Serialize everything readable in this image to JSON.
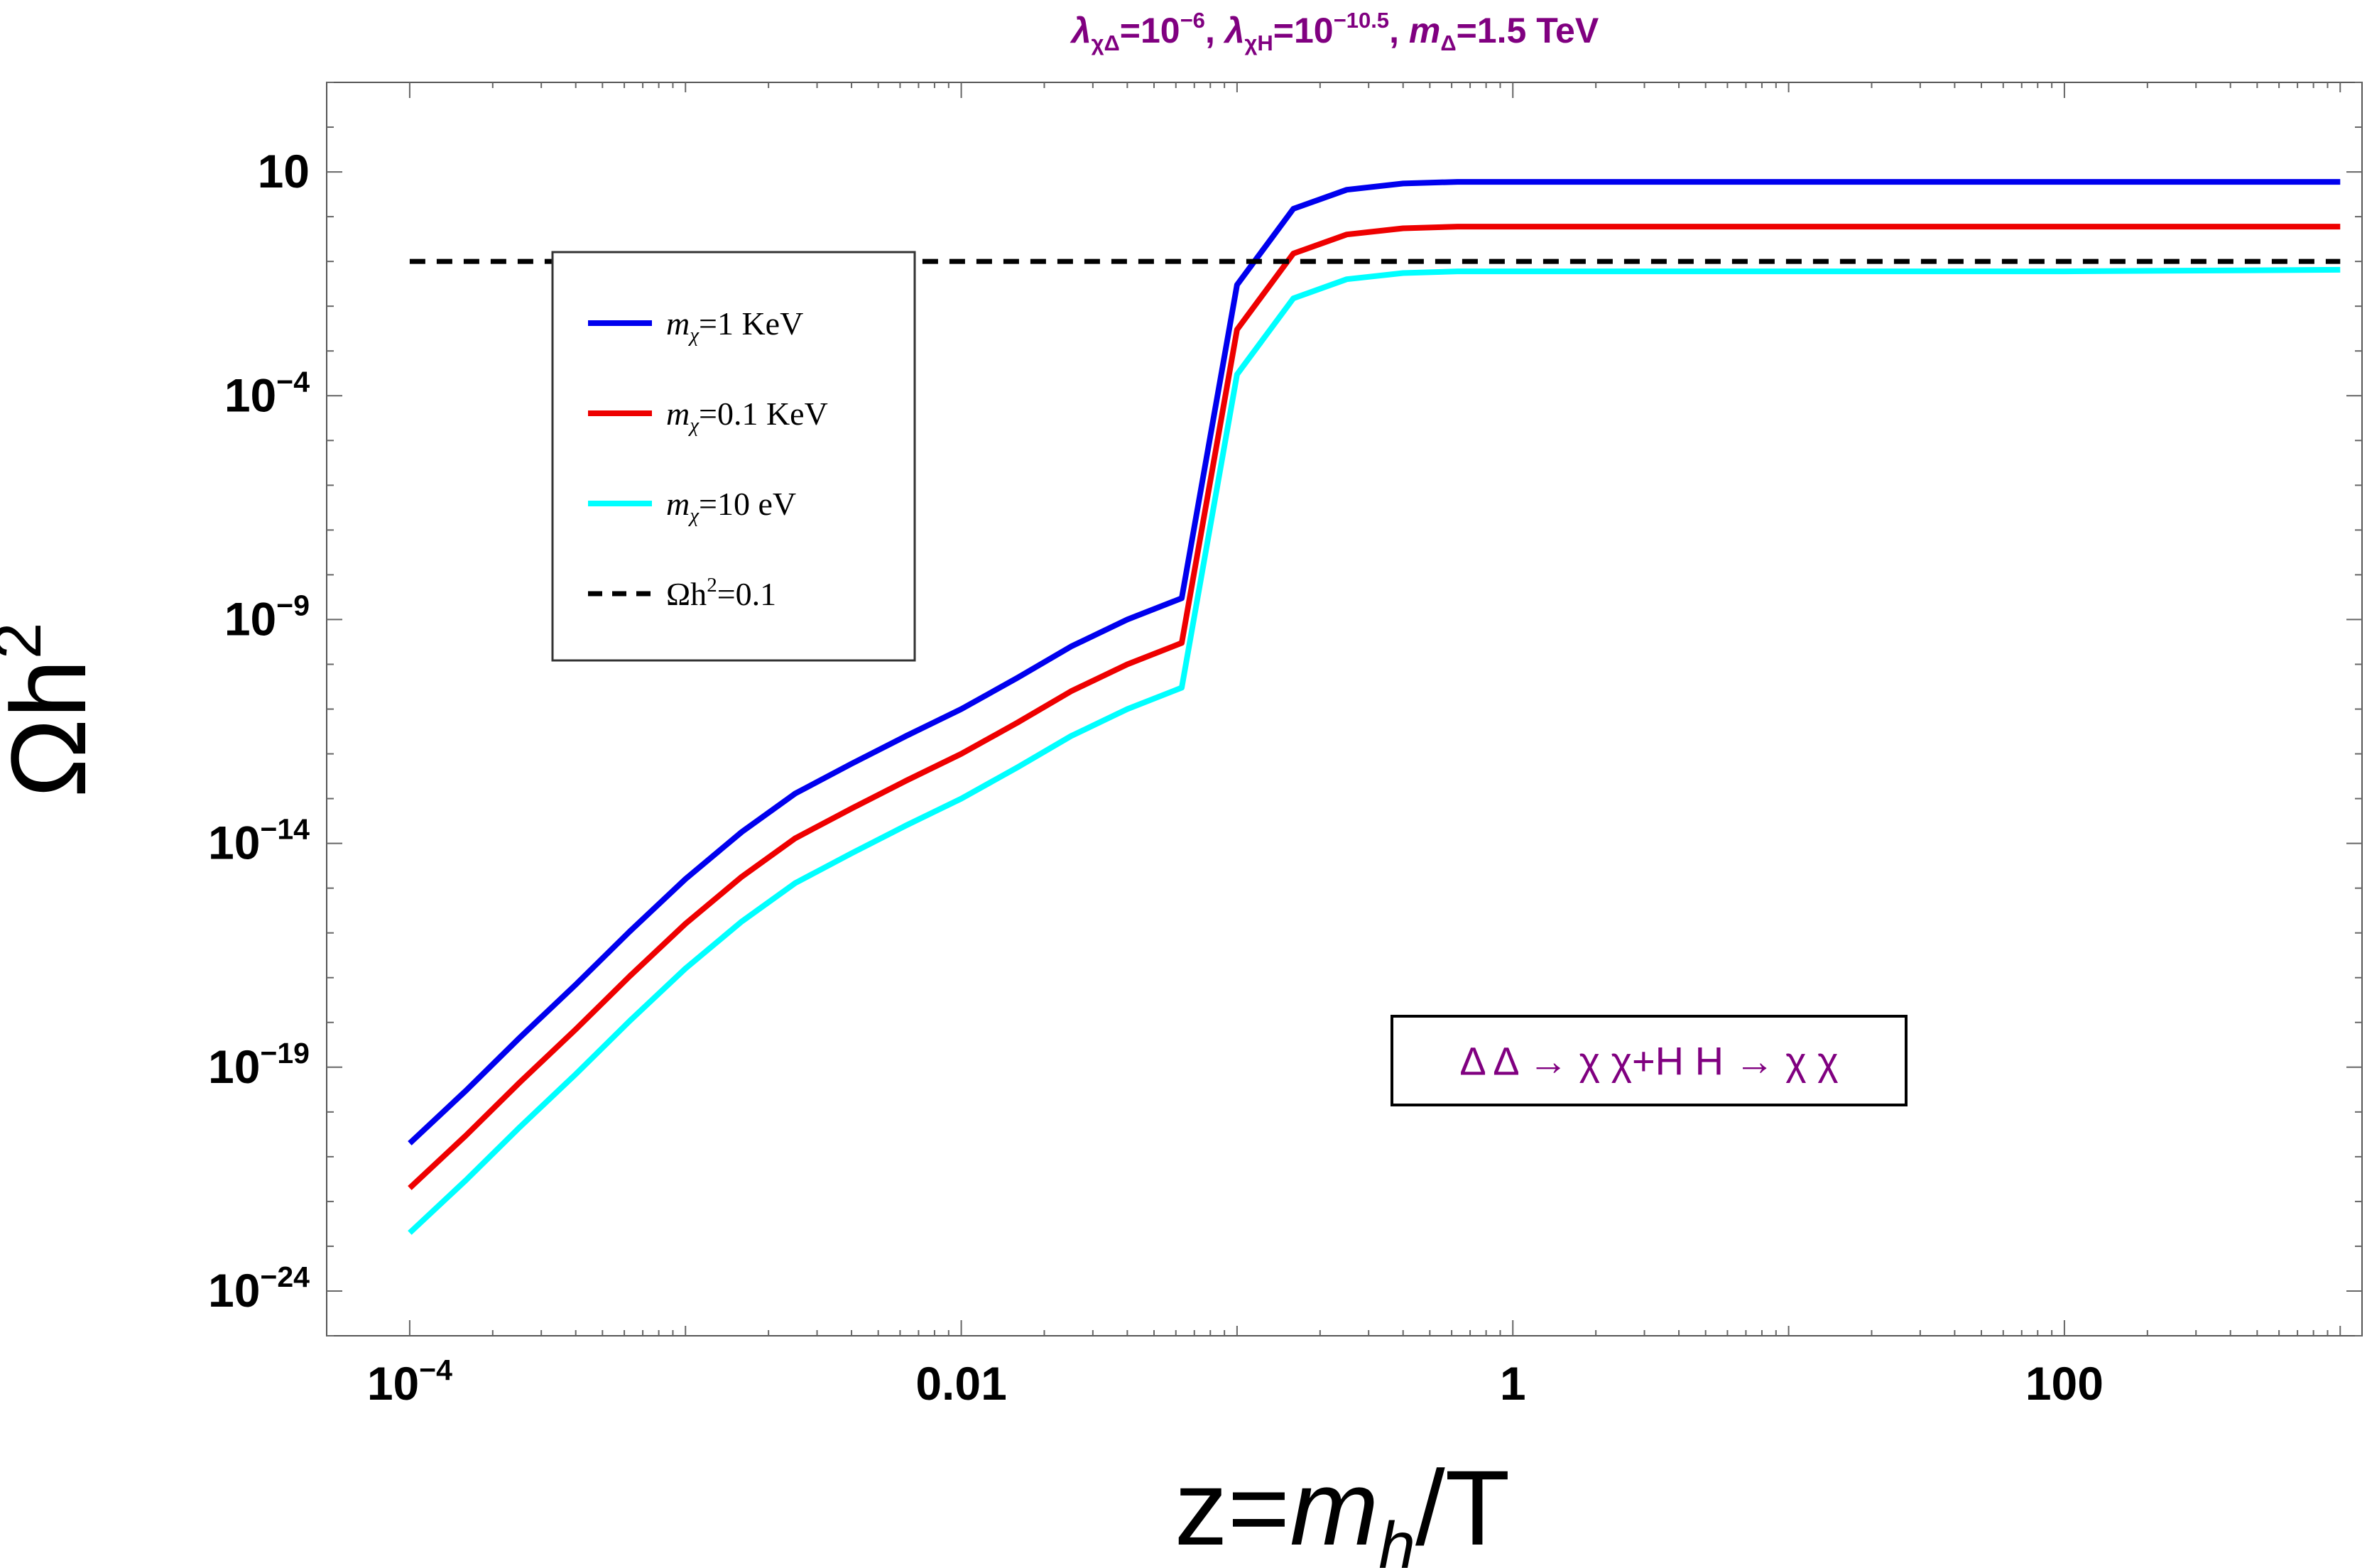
{
  "chart_data": {
    "type": "line",
    "title": {
      "parts": [
        {
          "t": "λ",
          "style": "italic"
        },
        {
          "t": "χΔ",
          "sub": true
        },
        {
          "t": "=10"
        },
        {
          "t": "−6",
          "sup": true
        },
        {
          "t": ", "
        },
        {
          "t": "λ",
          "style": "italic"
        },
        {
          "t": "χH",
          "sub": true
        },
        {
          "t": "=10"
        },
        {
          "t": "−10.5",
          "sup": true
        },
        {
          "t": ", "
        },
        {
          "t": "m",
          "style": "italic"
        },
        {
          "t": "Δ",
          "sub": true
        },
        {
          "t": "=1.5 TeV"
        }
      ]
    },
    "xlabel": {
      "parts": [
        {
          "t": "z="
        },
        {
          "t": "m",
          "style": "italic"
        },
        {
          "t": "h",
          "sub": true,
          "style": "italic"
        },
        {
          "t": "/T"
        }
      ]
    },
    "ylabel": {
      "parts": [
        {
          "t": "Ωh"
        },
        {
          "t": "2",
          "sup": true
        }
      ]
    },
    "x_scale": "log",
    "y_scale": "log",
    "xlim": [
      5e-05,
      1200
    ],
    "ylim": [
      1e-25,
      1000.0
    ],
    "x_ticks": [
      {
        "value": 0.0001,
        "base": "10",
        "exp": "−4"
      },
      {
        "value": 0.01,
        "label": "0.01"
      },
      {
        "value": 1,
        "label": "1"
      },
      {
        "value": 100,
        "label": "100"
      }
    ],
    "y_ticks": [
      {
        "value": 10.0,
        "label": "10"
      },
      {
        "value": 0.0001,
        "base": "10",
        "exp": "−4"
      },
      {
        "value": 1e-09,
        "base": "10",
        "exp": "−9"
      },
      {
        "value": 1e-14,
        "base": "10",
        "exp": "−14"
      },
      {
        "value": 1e-19,
        "base": "10",
        "exp": "−19"
      },
      {
        "value": 1e-24,
        "base": "10",
        "exp": "−24"
      }
    ],
    "grid": false,
    "legend_position": "top-left",
    "series": [
      {
        "name": "m_χ=1 KeV",
        "legend_parts": [
          {
            "t": "m",
            "style": "italic"
          },
          {
            "t": "χ",
            "sub": true,
            "style": "italic"
          },
          {
            "t": "=1 KeV"
          }
        ],
        "color": "#0000ee",
        "dash": false,
        "x": [
          0.0001,
          0.00016,
          0.00025,
          0.0004,
          0.00063,
          0.001,
          0.0016,
          0.0025,
          0.004,
          0.0063,
          0.01,
          0.016,
          0.025,
          0.04,
          0.063,
          0.1,
          0.16,
          0.25,
          0.4,
          0.63,
          0.79,
          1.3,
          2.0,
          3.2,
          5.0,
          10,
          100,
          1000
        ],
        "y": [
          2e-21,
          3e-20,
          4.5e-19,
          7e-18,
          1.1e-16,
          1.6e-15,
          1.8e-14,
          1.3e-13,
          6e-13,
          2.5e-12,
          1e-11,
          5e-11,
          2.5e-10,
          1e-09,
          3e-09,
          0.03,
          1.5,
          4,
          5.5,
          6,
          6,
          6,
          6,
          6,
          6,
          6,
          6,
          6
        ]
      },
      {
        "name": "m_χ=0.1 KeV",
        "legend_parts": [
          {
            "t": "m",
            "style": "italic"
          },
          {
            "t": "χ",
            "sub": true,
            "style": "italic"
          },
          {
            "t": "=0.1 KeV"
          }
        ],
        "color": "#ee0000",
        "dash": false,
        "x": [
          0.0001,
          0.00016,
          0.00025,
          0.0004,
          0.00063,
          0.001,
          0.0016,
          0.0025,
          0.004,
          0.0063,
          0.01,
          0.016,
          0.025,
          0.04,
          0.063,
          0.1,
          0.16,
          0.25,
          0.4,
          0.63,
          0.79,
          1.3,
          2.0,
          3.2,
          5.0,
          10,
          100,
          1000
        ],
        "y": [
          2e-22,
          3e-21,
          4.5e-20,
          7e-19,
          1.1e-17,
          1.6e-16,
          1.8e-15,
          1.3e-14,
          6e-14,
          2.5e-13,
          1e-12,
          5e-12,
          2.5e-11,
          1e-10,
          3e-10,
          0.003,
          0.15,
          0.4,
          0.55,
          0.6,
          0.6,
          0.6,
          0.6,
          0.6,
          0.6,
          0.6,
          0.6,
          0.6
        ]
      },
      {
        "name": "m_χ=10 eV",
        "legend_parts": [
          {
            "t": "m",
            "style": "italic"
          },
          {
            "t": "χ",
            "sub": true,
            "style": "italic"
          },
          {
            "t": "=10 eV"
          }
        ],
        "color": "#00ffff",
        "dash": false,
        "x": [
          0.0001,
          0.00016,
          0.00025,
          0.0004,
          0.00063,
          0.001,
          0.0016,
          0.0025,
          0.004,
          0.0063,
          0.01,
          0.016,
          0.025,
          0.04,
          0.063,
          0.1,
          0.16,
          0.25,
          0.4,
          0.63,
          0.79,
          1.3,
          2.0,
          3.2,
          5.0,
          10,
          100,
          1000
        ],
        "y": [
          2e-23,
          3e-22,
          4.5e-21,
          7e-20,
          1.1e-18,
          1.6e-17,
          1.8e-16,
          1.3e-15,
          6e-15,
          2.5e-14,
          1e-13,
          5e-13,
          2.5e-12,
          1e-11,
          3e-11,
          0.0003,
          0.015,
          0.04,
          0.055,
          0.06,
          0.06,
          0.06,
          0.06,
          0.06,
          0.06,
          0.06,
          0.06,
          0.065
        ]
      },
      {
        "name": "Ωh²=0.1",
        "legend_parts": [
          {
            "t": "Ωh"
          },
          {
            "t": "2",
            "sup": true
          },
          {
            "t": "=0.1"
          }
        ],
        "color": "#000000",
        "dash": true,
        "x": [
          0.0001,
          1000
        ],
        "y": [
          0.1,
          0.1
        ]
      }
    ],
    "annotation": "Δ Δ → χ χ+H H → χ χ"
  }
}
